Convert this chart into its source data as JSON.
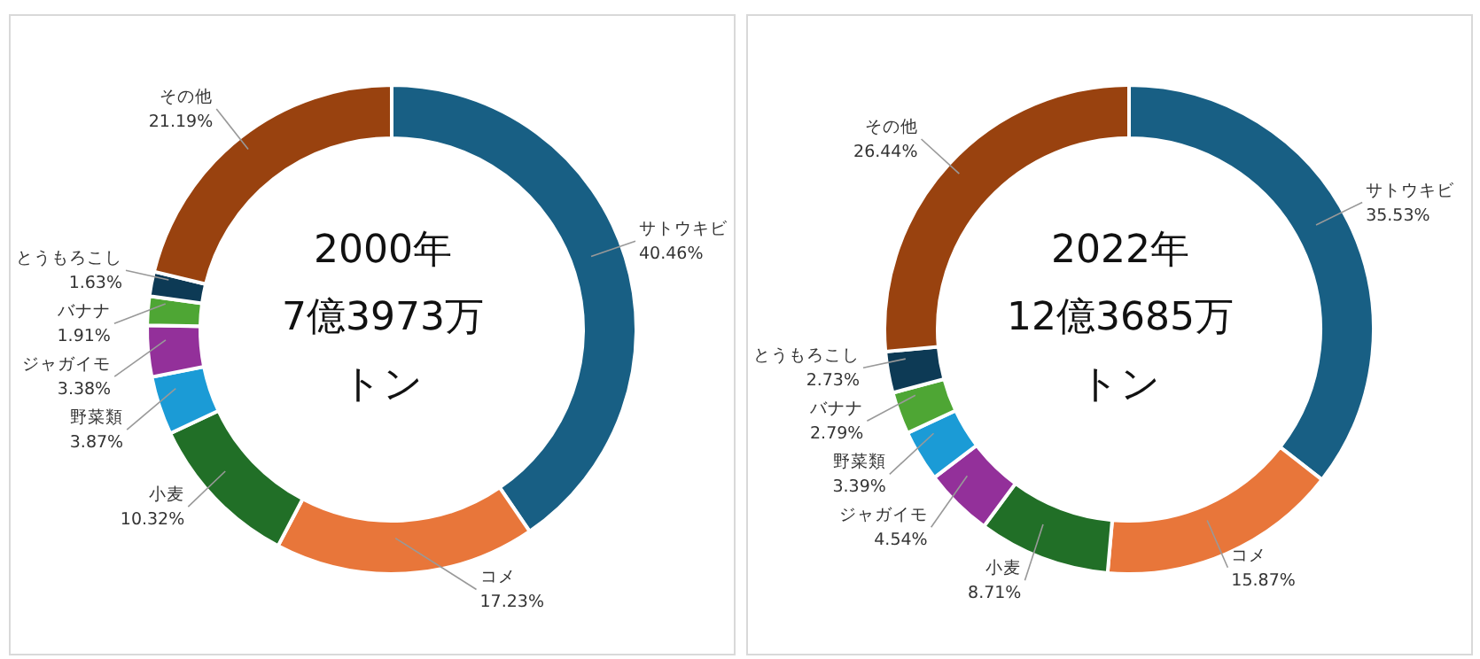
{
  "chart_data": [
    {
      "type": "donut",
      "title": "2000年",
      "annotations": [
        "7億3973万",
        "トン"
      ],
      "categories": [
        "サトウキビ",
        "コメ",
        "小麦",
        "野菜類",
        "ジャガイモ",
        "バナナ",
        "とうもろこし",
        "その他"
      ],
      "values": [
        40.46,
        17.23,
        10.32,
        3.87,
        3.38,
        1.91,
        1.63,
        21.19
      ],
      "value_labels": [
        "40.46%",
        "17.23%",
        "10.32%",
        "3.87%",
        "3.38%",
        "1.91%",
        "1.63%",
        "21.19%"
      ],
      "colors": [
        "#185f84",
        "#e8763a",
        "#216f27",
        "#1b9bd6",
        "#93309a",
        "#4ea634",
        "#0d3a55",
        "#99420f"
      ]
    },
    {
      "type": "donut",
      "title": "2022年",
      "annotations": [
        "12億3685万",
        "トン"
      ],
      "categories": [
        "サトウキビ",
        "コメ",
        "小麦",
        "ジャガイモ",
        "野菜類",
        "バナナ",
        "とうもろこし",
        "その他"
      ],
      "values": [
        35.53,
        15.87,
        8.71,
        4.54,
        3.39,
        2.79,
        2.73,
        26.44
      ],
      "value_labels": [
        "35.53%",
        "15.87%",
        "8.71%",
        "4.54%",
        "3.39%",
        "2.79%",
        "2.73%",
        "26.44%"
      ],
      "colors": [
        "#185f84",
        "#e8763a",
        "#216f27",
        "#93309a",
        "#1b9bd6",
        "#4ea634",
        "#0d3a55",
        "#99420f"
      ]
    }
  ]
}
